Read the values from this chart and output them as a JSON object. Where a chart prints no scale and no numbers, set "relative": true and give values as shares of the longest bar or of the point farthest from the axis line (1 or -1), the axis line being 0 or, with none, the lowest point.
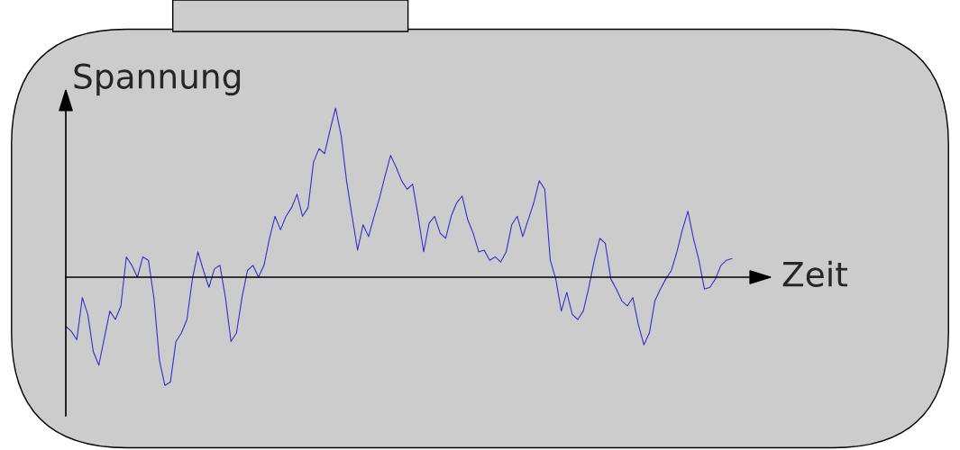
{
  "chart_data": {
    "type": "line",
    "relative": true,
    "xlabel": "Zeit",
    "ylabel": "Spannung",
    "categories": [
      null,
      null,
      null,
      null,
      null,
      null,
      null,
      null,
      null,
      null,
      null,
      null,
      null,
      null,
      null,
      null,
      null,
      null,
      null,
      null,
      null,
      null,
      null,
      null,
      null,
      null,
      null,
      null,
      null,
      null,
      null,
      null,
      null,
      null,
      null,
      null,
      null,
      null,
      null,
      null,
      null,
      null,
      null,
      null,
      null,
      null,
      null,
      null,
      null,
      null,
      null,
      null,
      null,
      null,
      null,
      null,
      null,
      null,
      null,
      null,
      null,
      null,
      null,
      null,
      null,
      null,
      null,
      null,
      null,
      null,
      null,
      null,
      null,
      null,
      null,
      null,
      null,
      null,
      null,
      null,
      null,
      null,
      null,
      null,
      null,
      null,
      null,
      null,
      null,
      null,
      null,
      null,
      null,
      null,
      null,
      null,
      null,
      null,
      null,
      null,
      null,
      null,
      null,
      null,
      null,
      null,
      null,
      null,
      null,
      null,
      null,
      null,
      null,
      null,
      null,
      null,
      null,
      null,
      null,
      null,
      null,
      null
    ],
    "series": [
      {
        "color": "#3333cc",
        "values": [
          -0.29,
          -0.32,
          -0.37,
          -0.12,
          -0.22,
          -0.44,
          -0.52,
          -0.36,
          -0.2,
          -0.25,
          -0.17,
          0.12,
          0.07,
          0,
          0.12,
          0.1,
          -0.12,
          -0.49,
          -0.64,
          -0.62,
          -0.38,
          -0.33,
          -0.25,
          -0.01,
          0.15,
          0.04,
          -0.06,
          0.05,
          0.07,
          -0.12,
          -0.38,
          -0.33,
          -0.12,
          0.04,
          0.07,
          0,
          0.07,
          0.23,
          0.36,
          0.28,
          0.36,
          0.41,
          0.49,
          0.36,
          0.41,
          0.68,
          0.76,
          0.73,
          0.87,
          1,
          0.84,
          0.57,
          0.36,
          0.16,
          0.31,
          0.24,
          0.36,
          0.47,
          0.6,
          0.72,
          0.65,
          0.57,
          0.52,
          0.55,
          0.36,
          0.15,
          0.32,
          0.36,
          0.26,
          0.23,
          0.36,
          0.44,
          0.48,
          0.34,
          0.26,
          0.15,
          0.16,
          0.1,
          0.12,
          0.09,
          0.15,
          0.31,
          0.36,
          0.24,
          0.34,
          0.44,
          0.57,
          0.52,
          0.1,
          -0.01,
          -0.2,
          -0.09,
          -0.22,
          -0.25,
          -0.2,
          -0.06,
          0.1,
          0.23,
          0.2,
          -0.01,
          -0.07,
          -0.14,
          -0.17,
          -0.12,
          -0.28,
          -0.4,
          -0.33,
          -0.14,
          -0.07,
          -0.01,
          0.04,
          0.15,
          0.28,
          0.39,
          0.23,
          0.1,
          -0.07,
          -0.06,
          -0.01,
          0.07,
          0.1,
          0.11
        ]
      }
    ]
  }
}
